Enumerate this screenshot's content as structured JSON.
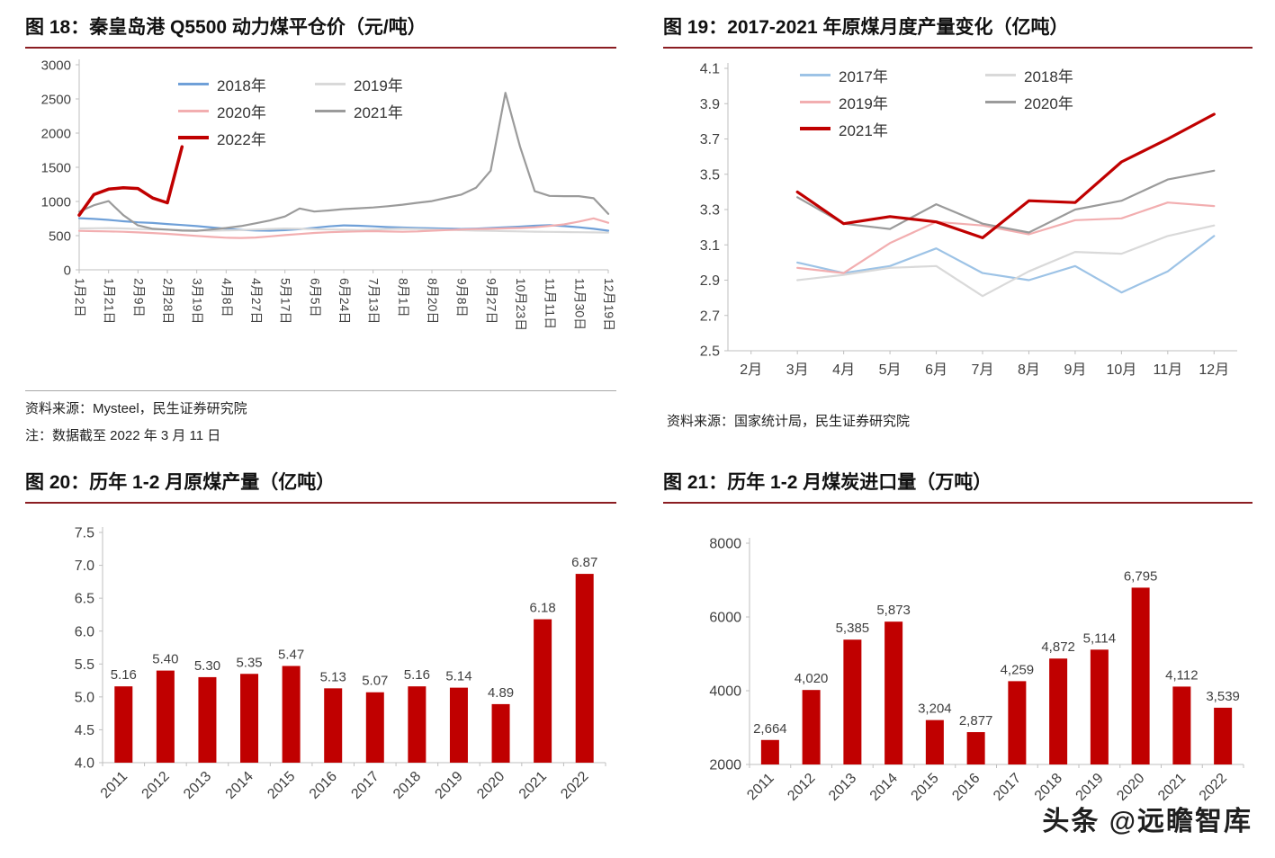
{
  "page": {
    "accent_color": "#8B1D22",
    "watermark": "头条 @远瞻智库"
  },
  "fig18": {
    "title": "图 18：秦皇岛港 Q5500 动力煤平仓价（元/吨）",
    "source": "资料来源：Mysteel，民生证券研究院",
    "note": "注：数据截至 2022 年 3 月 11 日"
  },
  "fig19": {
    "title": "图 19：2017-2021 年原煤月度产量变化（亿吨）",
    "source": "资料来源：国家统计局，民生证券研究院"
  },
  "fig20": {
    "title": "图 20：历年 1-2 月原煤产量（亿吨）"
  },
  "fig21": {
    "title": "图 21：历年 1-2 月煤炭进口量（万吨）"
  },
  "chart_data": [
    {
      "id": "fig18",
      "type": "line",
      "title": "秦皇岛港 Q5500 动力煤平仓价（元/吨）",
      "ylabel": "元/吨",
      "ylim": [
        0,
        3000
      ],
      "ytick_labels": [
        "3000",
        "2500",
        "2000",
        "1500",
        "1000",
        "500",
        "0"
      ],
      "x_labels": [
        "1月2日",
        "1月21日",
        "2月9日",
        "2月28日",
        "3月19日",
        "4月8日",
        "4月27日",
        "5月17日",
        "6月5日",
        "6月24日",
        "7月13日",
        "8月1日",
        "8月20日",
        "9月8日",
        "9月27日",
        "10月23日",
        "11月11日",
        "11月30日",
        "12月19日"
      ],
      "legend_position": "top-left-inside",
      "grid": false,
      "series": [
        {
          "name": "2018年",
          "color": "#6FA0D8",
          "width": 2.2,
          "values": [
            755,
            745,
            730,
            710,
            695,
            685,
            670,
            655,
            640,
            620,
            600,
            585,
            575,
            572,
            580,
            595,
            615,
            635,
            650,
            645,
            635,
            625,
            618,
            612,
            608,
            602,
            598,
            602,
            612,
            622,
            632,
            645,
            652,
            640,
            622,
            600,
            572
          ]
        },
        {
          "name": "2019年",
          "color": "#D9D9D9",
          "width": 2.2,
          "values": [
            605,
            608,
            610,
            605,
            598,
            592,
            588,
            582,
            578,
            572,
            576,
            582,
            590,
            598,
            604,
            600,
            595,
            590,
            586,
            582,
            590,
            596,
            600,
            596,
            590,
            585,
            580,
            574,
            570,
            566,
            562,
            558,
            555,
            552,
            550,
            548,
            544
          ]
        },
        {
          "name": "2020年",
          "color": "#F2AEB0",
          "width": 2.2,
          "values": [
            570,
            566,
            562,
            556,
            548,
            538,
            526,
            512,
            496,
            482,
            470,
            466,
            472,
            490,
            508,
            524,
            540,
            550,
            556,
            562,
            566,
            560,
            556,
            562,
            572,
            582,
            590,
            596,
            600,
            606,
            612,
            622,
            642,
            665,
            705,
            752,
            688
          ]
        },
        {
          "name": "2021年",
          "color": "#9B9B9B",
          "width": 2.2,
          "values": [
            850,
            945,
            1005,
            800,
            650,
            600,
            588,
            574,
            570,
            590,
            612,
            640,
            680,
            722,
            780,
            898,
            852,
            868,
            888,
            900,
            912,
            930,
            952,
            980,
            1005,
            1052,
            1100,
            1200,
            1450,
            2590,
            1800,
            1150,
            1082,
            1078,
            1078,
            1048,
            818
          ]
        },
        {
          "name": "2022年",
          "color": "#C00000",
          "width": 3.5,
          "values": [
            800,
            1100,
            1180,
            1200,
            1190,
            1050,
            980,
            1800,
            null,
            null,
            null,
            null,
            null,
            null,
            null,
            null,
            null,
            null,
            null,
            null,
            null,
            null,
            null,
            null,
            null,
            null,
            null,
            null,
            null,
            null,
            null,
            null,
            null,
            null,
            null,
            null,
            null
          ]
        }
      ]
    },
    {
      "id": "fig19",
      "type": "line",
      "title": "2017-2021 年原煤月度产量变化（亿吨）",
      "ylabel": "亿吨",
      "ylim": [
        2.5,
        4.1
      ],
      "ytick_labels": [
        "4.1",
        "3.9",
        "3.7",
        "3.5",
        "3.3",
        "3.1",
        "2.9",
        "2.7",
        "2.5"
      ],
      "x_labels": [
        "2月",
        "3月",
        "4月",
        "5月",
        "6月",
        "7月",
        "8月",
        "9月",
        "10月",
        "11月",
        "12月"
      ],
      "legend_position": "top-center-inside",
      "grid": false,
      "series": [
        {
          "name": "2017年",
          "color": "#9DC3E6",
          "width": 2.2,
          "values": [
            null,
            3.0,
            2.94,
            2.98,
            3.08,
            2.94,
            2.9,
            2.98,
            2.83,
            2.95,
            3.15
          ]
        },
        {
          "name": "2018年",
          "color": "#D9D9D9",
          "width": 2.2,
          "values": [
            null,
            2.9,
            2.93,
            2.97,
            2.98,
            2.81,
            2.95,
            3.06,
            3.05,
            3.15,
            3.21
          ]
        },
        {
          "name": "2019年",
          "color": "#F2AEB0",
          "width": 2.2,
          "values": [
            null,
            2.97,
            2.94,
            3.11,
            3.23,
            3.21,
            3.16,
            3.24,
            3.25,
            3.34,
            3.32
          ]
        },
        {
          "name": "2020年",
          "color": "#9B9B9B",
          "width": 2.2,
          "values": [
            null,
            3.37,
            3.22,
            3.19,
            3.33,
            3.22,
            3.17,
            3.3,
            3.35,
            3.47,
            3.52
          ]
        },
        {
          "name": "2021年",
          "color": "#C00000",
          "width": 3.2,
          "values": [
            null,
            3.4,
            3.22,
            3.26,
            3.23,
            3.14,
            3.35,
            3.34,
            3.57,
            3.7,
            3.84
          ]
        }
      ]
    },
    {
      "id": "fig20",
      "type": "bar",
      "title": "历年 1-2 月原煤产量（亿吨）",
      "ylabel": "亿吨",
      "ylim": [
        4.0,
        7.5
      ],
      "ytick_labels": [
        "7.5",
        "7.0",
        "6.5",
        "6.0",
        "5.5",
        "5.0",
        "4.5",
        "4.0"
      ],
      "categories": [
        "2011",
        "2012",
        "2013",
        "2014",
        "2015",
        "2016",
        "2017",
        "2018",
        "2019",
        "2020",
        "2021",
        "2022"
      ],
      "values": [
        5.16,
        5.4,
        5.3,
        5.35,
        5.47,
        5.13,
        5.07,
        5.16,
        5.14,
        4.89,
        6.18,
        6.87
      ],
      "value_labels": [
        "5.16",
        "5.40",
        "5.30",
        "5.35",
        "5.47",
        "5.13",
        "5.07",
        "5.16",
        "5.14",
        "4.89",
        "6.18",
        "6.87"
      ],
      "bar_color": "#C00000",
      "grid": false
    },
    {
      "id": "fig21",
      "type": "bar",
      "title": "历年 1-2 月煤炭进口量（万吨）",
      "ylabel": "万吨",
      "ylim": [
        2000,
        8000
      ],
      "ytick_labels": [
        "8000",
        "6000",
        "4000",
        "2000"
      ],
      "categories": [
        "2011",
        "2012",
        "2013",
        "2014",
        "2015",
        "2016",
        "2017",
        "2018",
        "2019",
        "2020",
        "2021",
        "2022"
      ],
      "values": [
        2664,
        4020,
        5385,
        5873,
        3204,
        2877,
        4259,
        4872,
        5114,
        6795,
        4112,
        3539
      ],
      "value_labels": [
        "2,664",
        "4,020",
        "5,385",
        "5,873",
        "3,204",
        "2,877",
        "4,259",
        "4,872",
        "5,114",
        "6,795",
        "4,112",
        "3,539"
      ],
      "bar_color": "#C00000",
      "grid": false
    }
  ]
}
